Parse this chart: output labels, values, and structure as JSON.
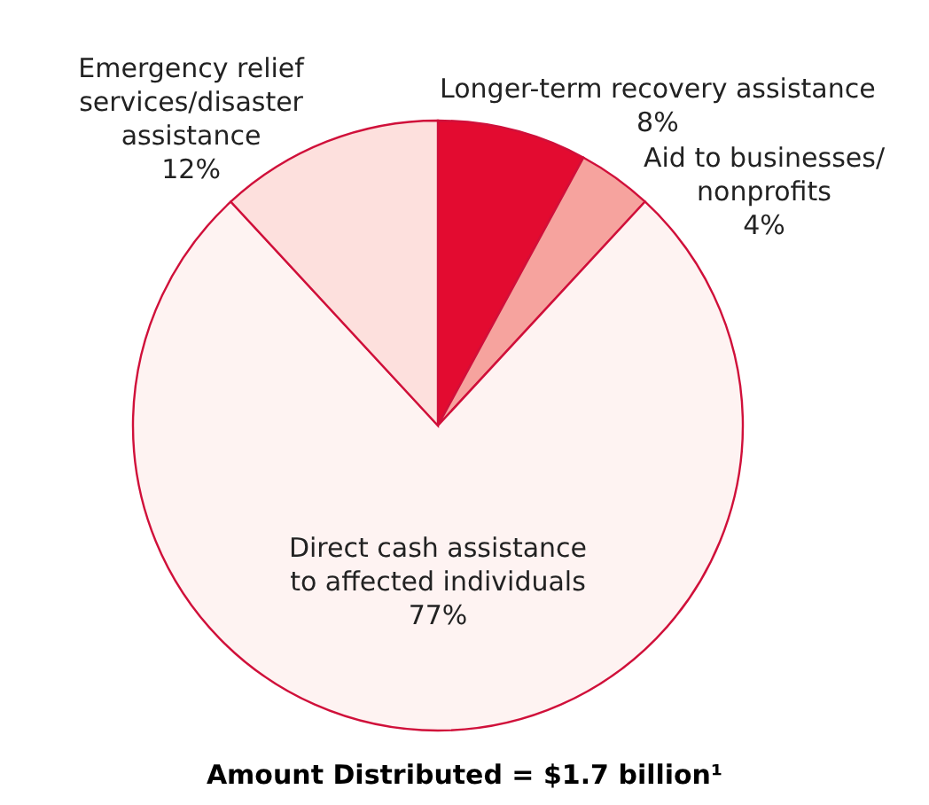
{
  "chart_data": {
    "type": "pie",
    "title": "Amount Distributed = $1.7 billion¹",
    "categories": [
      "Longer-term recovery assistance",
      "Aid to businesses/nonprofits",
      "Direct cash assistance to affected individuals",
      "Emergency relief services/disaster assistance"
    ],
    "values": [
      8,
      4,
      77,
      12
    ],
    "value_labels": [
      "8%",
      "4%",
      "77%",
      "12%"
    ],
    "colors": [
      "#e30b30",
      "#f6a39e",
      "#fef3f2",
      "#fde0dd"
    ]
  }
}
